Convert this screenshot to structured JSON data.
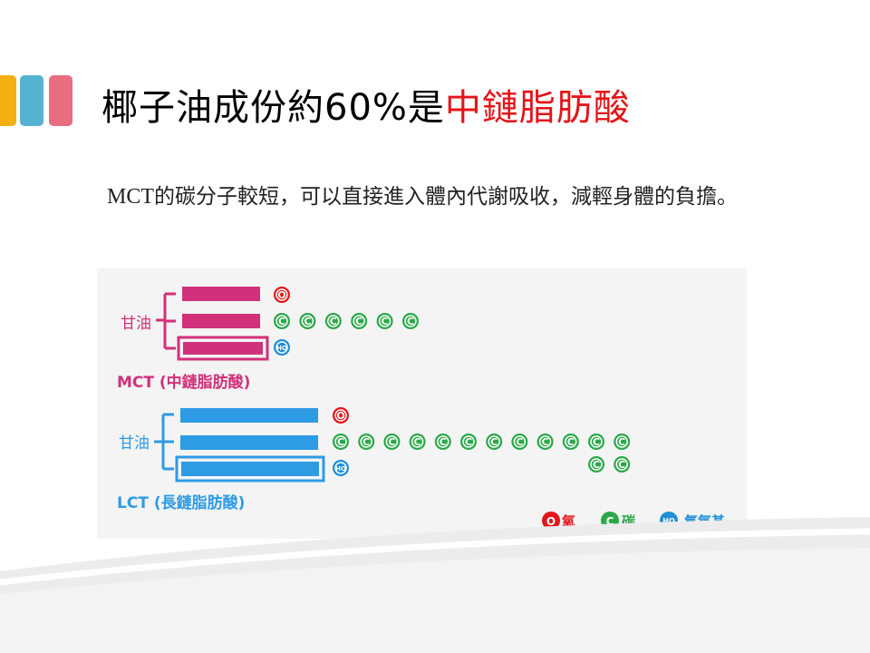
{
  "slide": {
    "title_main": "椰子油成份約60%是",
    "title_highlight": "中鏈脂肪酸",
    "body_latin": "MCT",
    "body_rest": "的碳分子較短，可以直接進入體內代謝吸收，減輕身體的負擔。"
  },
  "colors": {
    "title_highlight": "#e3151a",
    "mct": "#d1317a",
    "lct": "#2e9be5",
    "oxygen": "#e3151a",
    "carbon": "#2ba84a",
    "hydroxyl": "#1f8fd6"
  },
  "diagram": {
    "mct": {
      "glycerol_label": "甘油",
      "caption": "MCT (中鏈脂肪酸)",
      "carbon_count": 6
    },
    "lct": {
      "glycerol_label": "甘油",
      "caption": "LCT (長鏈脂肪酸)",
      "carbon_count_row1": 12,
      "carbon_count_row2": 2
    },
    "atoms": {
      "oxygen_symbol": "O",
      "carbon_symbol": "C",
      "hydroxyl_symbol": "HO"
    },
    "legend": {
      "oxygen_label": "氧",
      "carbon_label": "碳",
      "hydroxyl_label": "氫氧基"
    }
  }
}
